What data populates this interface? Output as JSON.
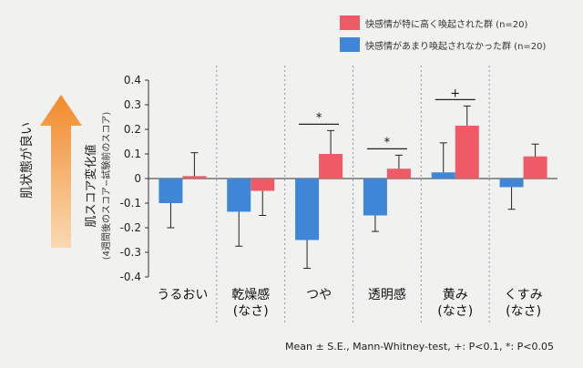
{
  "chart_data": {
    "type": "bar",
    "ylabel": "肌スコア変化値",
    "ylabel_sub": "(4週間後のスコア−試験前のスコア)",
    "side_label": "肌状態が良い",
    "ylim": [
      -0.4,
      0.4
    ],
    "yticks": [
      "0.4",
      "0.3",
      "0.2",
      "0.1",
      "0",
      "-0.1",
      "-0.2",
      "-0.3",
      "-0.4"
    ],
    "categories": [
      {
        "line1": "うるおい",
        "line2": ""
      },
      {
        "line1": "乾燥感",
        "line2": "(なさ)"
      },
      {
        "line1": "つや",
        "line2": ""
      },
      {
        "line1": "透明感",
        "line2": ""
      },
      {
        "line1": "黄み",
        "line2": "(なさ)"
      },
      {
        "line1": "くすみ",
        "line2": "(なさ)"
      }
    ],
    "series": [
      {
        "name": "快感情があまり喚起されなかった群 (n=20)",
        "color": "#3f86d6",
        "values": [
          -0.1,
          -0.135,
          -0.25,
          -0.15,
          0.025,
          -0.035
        ],
        "errors": [
          0.1,
          0.14,
          0.115,
          0.065,
          0.12,
          0.09
        ]
      },
      {
        "name": "快感情が特に高く喚起された群 (n=20)",
        "color": "#ee5a66",
        "values": [
          0.01,
          -0.05,
          0.1,
          0.04,
          0.215,
          0.09
        ],
        "errors": [
          0.095,
          0.1,
          0.095,
          0.055,
          0.08,
          0.05
        ]
      }
    ],
    "significance": [
      {
        "category_index": 2,
        "symbol": "*"
      },
      {
        "category_index": 3,
        "symbol": "*"
      },
      {
        "category_index": 4,
        "symbol": "+"
      }
    ],
    "footnote": "Mean ± S.E., Mann-Whitney-test, +: P<0.1, *: P<0.05",
    "grid": false
  }
}
